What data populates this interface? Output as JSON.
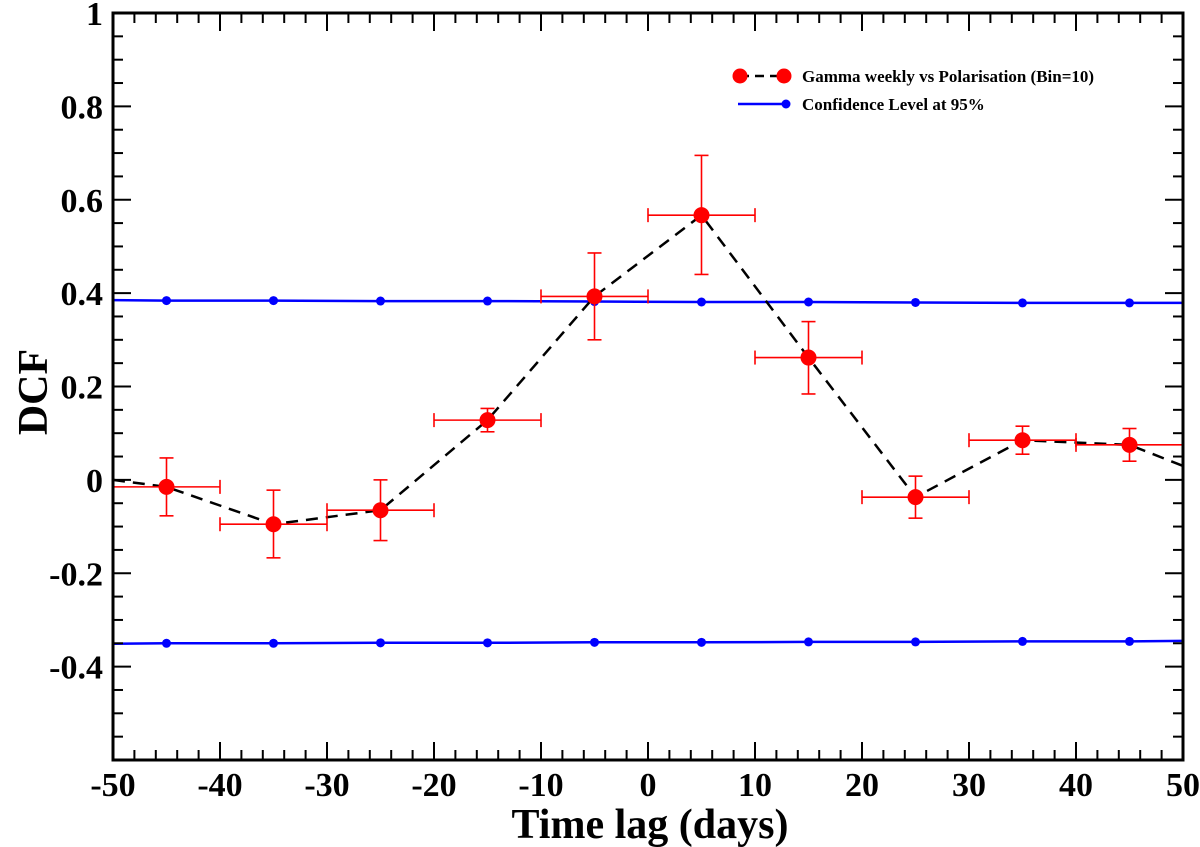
{
  "chart_data": {
    "type": "scatter",
    "title": "",
    "xlabel": "Time lag (days)",
    "ylabel": "DCF",
    "xlim": [
      -50,
      50
    ],
    "ylim": [
      -0.6,
      1.0
    ],
    "xticks": [
      -50,
      -40,
      -30,
      -20,
      -10,
      0,
      10,
      20,
      30,
      40,
      50
    ],
    "xtick_labels": [
      "-50",
      "-40",
      "-30",
      "-20",
      "-10",
      "0",
      "10",
      "20",
      "30",
      "40",
      "50"
    ],
    "yticks": [
      -0.4,
      -0.2,
      0,
      0.2,
      0.4,
      0.6,
      0.8,
      1.0
    ],
    "ytick_labels": [
      "-0.4",
      "-0.2",
      "0",
      "0.2",
      "0.4",
      "0.6",
      "0.8",
      "1"
    ],
    "grid": false,
    "legend_position": "top-right",
    "series": [
      {
        "name": "Gamma weekly vs Polarisation (Bin=10)",
        "color": "#ff0000",
        "line_color": "#000000",
        "line_style": "dashed",
        "x": [
          -45,
          -35,
          -25,
          -15,
          -5,
          5,
          15,
          25,
          35,
          45
        ],
        "y": [
          -0.015,
          -0.095,
          -0.065,
          0.128,
          0.393,
          0.567,
          0.262,
          -0.037,
          0.085,
          0.075
        ],
        "x_err": [
          5,
          5,
          5,
          5,
          5,
          5,
          5,
          5,
          5,
          5
        ],
        "y_err_low": [
          0.062,
          0.072,
          0.065,
          0.025,
          0.093,
          0.127,
          0.078,
          0.045,
          0.03,
          0.035
        ],
        "y_err_high": [
          0.062,
          0.073,
          0.065,
          0.025,
          0.093,
          0.128,
          0.077,
          0.045,
          0.03,
          0.035
        ],
        "line_start": [
          -50,
          0.0
        ],
        "line_end": [
          50,
          0.03
        ]
      },
      {
        "name": "Confidence Level at 95%",
        "color": "#0000ff",
        "line_style": "solid",
        "x": [
          -45,
          -35,
          -25,
          -15,
          -5,
          5,
          15,
          25,
          35,
          45
        ],
        "y": [
          0.384,
          0.384,
          0.383,
          0.383,
          0.382,
          0.381,
          0.381,
          0.38,
          0.379,
          0.379
        ],
        "line_start": [
          -50,
          0.385
        ],
        "line_end": [
          50,
          0.379
        ]
      },
      {
        "name": "Confidence Level at 95% (lower)",
        "color": "#0000ff",
        "line_style": "solid",
        "show_in_legend": false,
        "x": [
          -45,
          -35,
          -25,
          -15,
          -5,
          5,
          15,
          25,
          35,
          45
        ],
        "y": [
          -0.35,
          -0.35,
          -0.349,
          -0.349,
          -0.348,
          -0.348,
          -0.347,
          -0.347,
          -0.346,
          -0.346
        ],
        "line_start": [
          -50,
          -0.351
        ],
        "line_end": [
          50,
          -0.345
        ]
      }
    ]
  }
}
